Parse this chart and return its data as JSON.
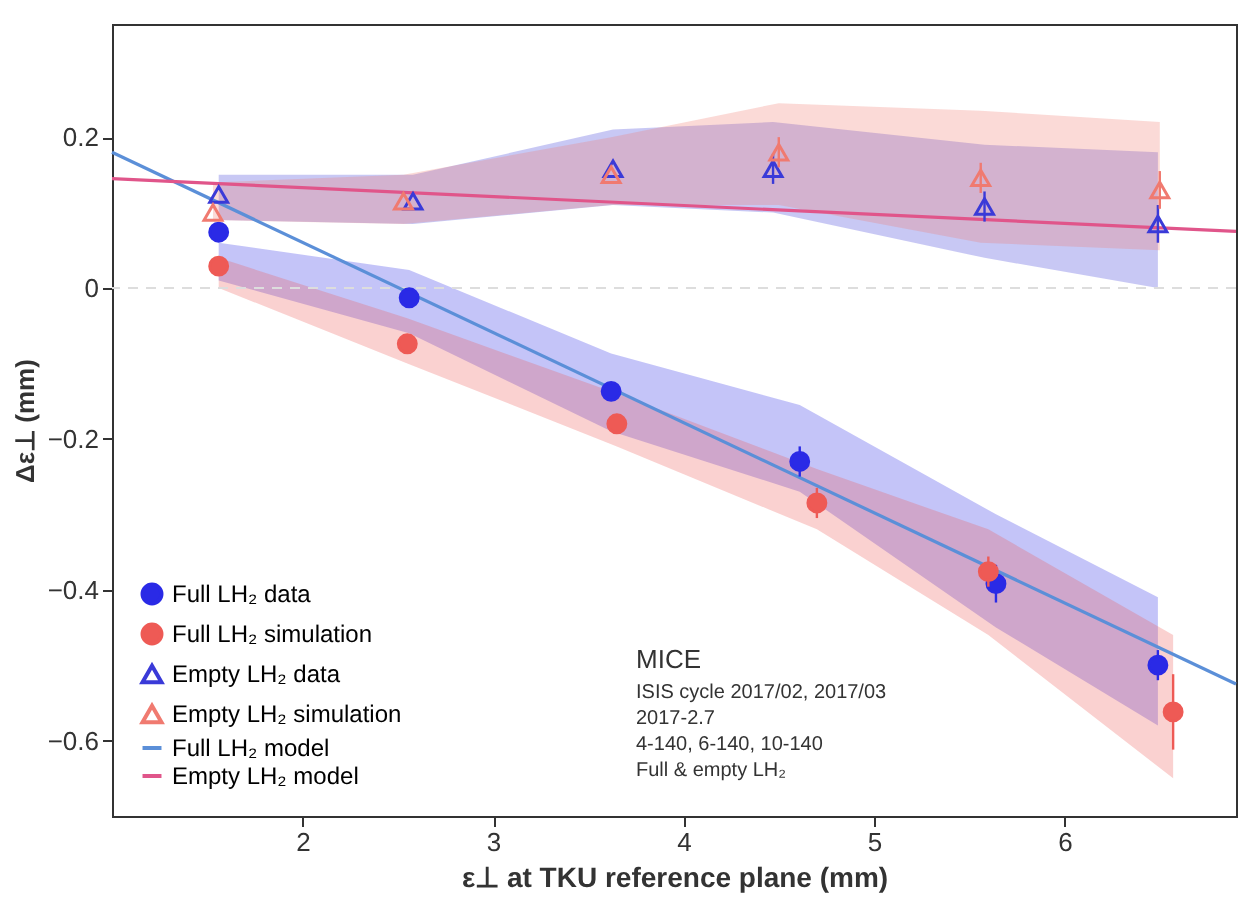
{
  "chart_data": {
    "type": "scatter",
    "xlabel": "ε⊥ at TKU reference plane (mm)",
    "ylabel": "Δε⊥ (mm)",
    "xlim": [
      1.0,
      6.9
    ],
    "ylim": [
      -0.7,
      0.35
    ],
    "xticks": [
      2,
      3,
      4,
      5,
      6
    ],
    "yticks": [
      -0.6,
      -0.4,
      -0.2,
      0,
      0.2
    ],
    "grid": false,
    "legend": "bottom left",
    "series": [
      {
        "name": "Full LH₂ data",
        "marker": "circle",
        "color": "#2a2ae6",
        "x": [
          1.56,
          2.56,
          3.62,
          4.61,
          5.64,
          6.49
        ],
        "values": [
          0.074,
          -0.013,
          -0.137,
          -0.23,
          -0.392,
          -0.5
        ],
        "errors": [
          null,
          null,
          0.01,
          0.02,
          0.025,
          0.02
        ],
        "lower": [
          0.01,
          -0.06,
          -0.19,
          -0.27,
          -0.45,
          -0.58
        ],
        "upper": [
          0.06,
          0.024,
          -0.087,
          -0.155,
          -0.3,
          -0.41
        ]
      },
      {
        "name": "Full LH₂ simulation",
        "marker": "circle",
        "color": "#ee5a55",
        "x": [
          1.56,
          2.55,
          3.65,
          4.7,
          5.6,
          6.57
        ],
        "values": [
          0.029,
          -0.074,
          -0.18,
          -0.285,
          -0.376,
          -0.562
        ],
        "errors": [
          null,
          null,
          0.01,
          0.02,
          0.02,
          0.05
        ],
        "lower": [
          0.0,
          -0.1,
          -0.21,
          -0.32,
          -0.46,
          -0.65
        ],
        "upper": [
          0.04,
          -0.04,
          -0.14,
          -0.24,
          -0.32,
          -0.46
        ]
      },
      {
        "name": "Empty LH₂ data",
        "marker": "triangle",
        "color": "#3a3ad8",
        "x": [
          1.56,
          2.58,
          3.63,
          4.47,
          5.58,
          6.49
        ],
        "values": [
          0.124,
          0.115,
          0.158,
          0.158,
          0.108,
          0.085
        ],
        "errors": [
          null,
          null,
          null,
          0.02,
          0.02,
          0.025
        ],
        "lower": [
          0.09,
          0.085,
          0.11,
          0.1,
          0.04,
          0.0
        ],
        "upper": [
          0.15,
          0.15,
          0.21,
          0.22,
          0.19,
          0.18
        ]
      },
      {
        "name": "Empty LH₂ simulation",
        "marker": "triangle",
        "color": "#f07a70",
        "x": [
          1.53,
          2.53,
          3.62,
          4.5,
          5.56,
          6.5
        ],
        "values": [
          0.1,
          0.115,
          0.15,
          0.18,
          0.146,
          0.13
        ],
        "errors": [
          null,
          null,
          null,
          0.02,
          0.02,
          0.025
        ],
        "lower": [
          0.09,
          0.085,
          0.11,
          0.11,
          0.06,
          0.05
        ],
        "upper": [
          0.14,
          0.15,
          0.2,
          0.245,
          0.235,
          0.22
        ]
      },
      {
        "name": "Full LH₂ model",
        "type": "line",
        "marker": "none",
        "line_style": "solid",
        "color": "#5b8fd8",
        "x": [
          1.0,
          6.9
        ],
        "values": [
          0.18,
          -0.525
        ]
      },
      {
        "name": "Empty LH₂ model",
        "type": "line",
        "marker": "none",
        "line_style": "solid",
        "color": "#e0558a",
        "x": [
          1.0,
          6.9
        ],
        "values": [
          0.145,
          0.075
        ]
      }
    ],
    "ref_lines": [
      {
        "axis": "y",
        "value": 0,
        "color": "#dddddd",
        "line_style": "dashed"
      }
    ],
    "annotations": [
      "MICE",
      "ISIS cycle 2017/02, 2017/03",
      "2017-2.7",
      "4-140, 6-140, 10-140",
      "Full & empty LH₂"
    ]
  }
}
